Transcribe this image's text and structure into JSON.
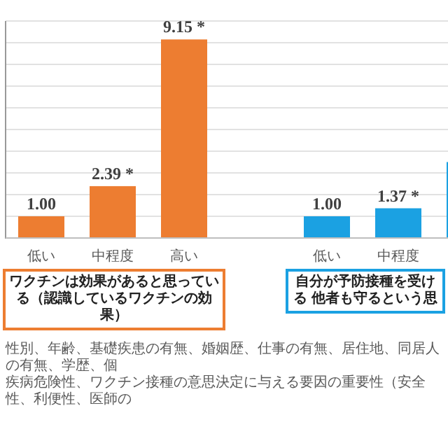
{
  "chart_data": {
    "type": "bar",
    "categories": [
      "低い",
      "中程度",
      "高い",
      "低い",
      "中程度",
      null
    ],
    "series": [
      {
        "color": "#ed7d31",
        "values": [
          1.0,
          2.39,
          9.15,
          null,
          null,
          null
        ],
        "value_labels": [
          "1.00",
          "2.39 *",
          "9.15 *",
          null,
          null,
          null
        ]
      },
      {
        "color": "#1ba1e2",
        "values": [
          null,
          null,
          null,
          1.0,
          1.37,
          3.5
        ],
        "value_labels": [
          null,
          null,
          null,
          "1.00",
          "1.37 *",
          null
        ]
      }
    ],
    "ylim": [
      0,
      10
    ],
    "yticks": [
      {
        "value": 0,
        "label": null
      },
      {
        "value": 1,
        "label": null
      },
      {
        "value": 2,
        "label": null
      },
      {
        "value": 3,
        "label": null
      },
      {
        "value": 4,
        "label": null
      },
      {
        "value": 5,
        "label": null
      },
      {
        "value": 6,
        "label": null
      },
      {
        "value": 7,
        "label": null
      },
      {
        "value": 8,
        "label": null
      },
      {
        "value": 9,
        "label": null
      },
      {
        "value": 10,
        "label": null
      }
    ],
    "tick_labels": "x",
    "grid": "y",
    "annotations": [
      "ワクチンは効果があると思っている（認識しているワクチンの効果）",
      "自分が予防接種を受ける 他者も守るという思",
      "性別、年齢、基礎疾患の有無、婚姻歴、仕事の有無、居住地、同居人の有無、学歴、個",
      "疾病危険性、ワクチン接種の意思決定に与える要因の重要性（安全性、利便性、医師の"
    ]
  }
}
